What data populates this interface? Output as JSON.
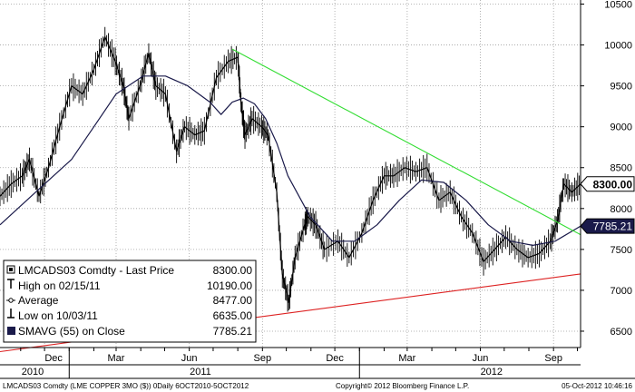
{
  "chart_data": {
    "type": "line",
    "instrument": "LMCADS03 Comdty",
    "y_ticks": [
      6500,
      7000,
      7500,
      8000,
      8500,
      9000,
      9500,
      10000,
      10500
    ],
    "ylim": [
      6300,
      10550
    ],
    "x_month_labels": [
      {
        "label": "Dec",
        "date": "2010-12-01"
      },
      {
        "label": "Mar",
        "date": "2011-03-01"
      },
      {
        "label": "Jun",
        "date": "2011-06-01"
      },
      {
        "label": "Sep",
        "date": "2011-09-01"
      },
      {
        "label": "Dec",
        "date": "2011-12-01"
      },
      {
        "label": "Mar",
        "date": "2012-03-01"
      },
      {
        "label": "Jun",
        "date": "2012-06-01"
      },
      {
        "label": "Sep",
        "date": "2012-09-01"
      }
    ],
    "x_year_labels": [
      {
        "label": "2010",
        "date": "2010-10-06"
      },
      {
        "label": "2011",
        "date": "2011-06-15"
      },
      {
        "label": "2012",
        "date": "2012-06-15"
      }
    ],
    "xlim": [
      "2010-10-06",
      "2012-10-05"
    ],
    "series": [
      {
        "name": "Last Price",
        "color": "#000000",
        "points": [
          [
            "2010-10-06",
            8150
          ],
          [
            "2010-10-20",
            8300
          ],
          [
            "2010-11-03",
            8400
          ],
          [
            "2010-11-12",
            8600
          ],
          [
            "2010-11-24",
            8150
          ],
          [
            "2010-12-06",
            8500
          ],
          [
            "2010-12-20",
            9000
          ],
          [
            "2011-01-04",
            9500
          ],
          [
            "2011-01-18",
            9400
          ],
          [
            "2011-02-01",
            9700
          ],
          [
            "2011-02-15",
            10100
          ],
          [
            "2011-02-28",
            9800
          ],
          [
            "2011-03-10",
            9500
          ],
          [
            "2011-03-17",
            9100
          ],
          [
            "2011-03-31",
            9500
          ],
          [
            "2011-04-11",
            9900
          ],
          [
            "2011-04-20",
            9500
          ],
          [
            "2011-05-02",
            9400
          ],
          [
            "2011-05-16",
            8700
          ],
          [
            "2011-05-26",
            9000
          ],
          [
            "2011-06-08",
            8900
          ],
          [
            "2011-06-20",
            8950
          ],
          [
            "2011-07-05",
            9600
          ],
          [
            "2011-07-20",
            9800
          ],
          [
            "2011-08-01",
            9850
          ],
          [
            "2011-08-05",
            9300
          ],
          [
            "2011-08-10",
            8900
          ],
          [
            "2011-08-19",
            9100
          ],
          [
            "2011-08-31",
            9000
          ],
          [
            "2011-09-08",
            8900
          ],
          [
            "2011-09-19",
            8200
          ],
          [
            "2011-09-26",
            7200
          ],
          [
            "2011-10-04",
            6850
          ],
          [
            "2011-10-12",
            7400
          ],
          [
            "2011-10-24",
            7800
          ],
          [
            "2011-10-28",
            7900
          ],
          [
            "2011-11-07",
            7800
          ],
          [
            "2011-11-18",
            7500
          ],
          [
            "2011-12-05",
            7600
          ],
          [
            "2011-12-19",
            7400
          ],
          [
            "2012-01-04",
            7700
          ],
          [
            "2012-01-18",
            8100
          ],
          [
            "2012-02-01",
            8400
          ],
          [
            "2012-02-13",
            8400
          ],
          [
            "2012-02-27",
            8500
          ],
          [
            "2012-03-12",
            8450
          ],
          [
            "2012-03-26",
            8500
          ],
          [
            "2012-04-10",
            8100
          ],
          [
            "2012-04-24",
            8200
          ],
          [
            "2012-05-08",
            7900
          ],
          [
            "2012-05-22",
            7700
          ],
          [
            "2012-06-05",
            7350
          ],
          [
            "2012-06-19",
            7500
          ],
          [
            "2012-07-03",
            7650
          ],
          [
            "2012-07-17",
            7500
          ],
          [
            "2012-07-31",
            7400
          ],
          [
            "2012-08-14",
            7450
          ],
          [
            "2012-08-28",
            7600
          ],
          [
            "2012-09-06",
            7850
          ],
          [
            "2012-09-14",
            8300
          ],
          [
            "2012-09-24",
            8200
          ],
          [
            "2012-10-05",
            8300
          ]
        ]
      },
      {
        "name": "SMAVG (55) on Close",
        "color": "#1a1a4a",
        "points": [
          [
            "2010-10-06",
            7800
          ],
          [
            "2010-11-03",
            8050
          ],
          [
            "2010-12-01",
            8300
          ],
          [
            "2011-01-04",
            8600
          ],
          [
            "2011-02-01",
            9000
          ],
          [
            "2011-03-01",
            9400
          ],
          [
            "2011-04-04",
            9620
          ],
          [
            "2011-05-02",
            9620
          ],
          [
            "2011-05-30",
            9500
          ],
          [
            "2011-06-27",
            9300
          ],
          [
            "2011-07-11",
            9150
          ],
          [
            "2011-07-25",
            9300
          ],
          [
            "2011-08-08",
            9350
          ],
          [
            "2011-08-22",
            9280
          ],
          [
            "2011-09-05",
            9100
          ],
          [
            "2011-09-19",
            8800
          ],
          [
            "2011-10-03",
            8400
          ],
          [
            "2011-10-31",
            7900
          ],
          [
            "2011-11-28",
            7600
          ],
          [
            "2011-12-26",
            7600
          ],
          [
            "2012-01-23",
            7800
          ],
          [
            "2012-02-20",
            8100
          ],
          [
            "2012-03-19",
            8350
          ],
          [
            "2012-04-16",
            8320
          ],
          [
            "2012-05-14",
            8100
          ],
          [
            "2012-06-11",
            7800
          ],
          [
            "2012-07-09",
            7600
          ],
          [
            "2012-08-06",
            7550
          ],
          [
            "2012-09-03",
            7600
          ],
          [
            "2012-10-05",
            7785.21
          ]
        ]
      },
      {
        "name": "Trendline (resistance)",
        "color": "#33dd33",
        "points": [
          [
            "2011-07-25",
            9950
          ],
          [
            "2012-10-05",
            7680
          ]
        ]
      },
      {
        "name": "Trendline (support)",
        "color": "#dd2222",
        "points": [
          [
            "2010-10-06",
            6250
          ],
          [
            "2012-10-05",
            7200
          ]
        ]
      }
    ],
    "price_tags": [
      {
        "value": 8300.0,
        "label": "8300.00",
        "style": "price"
      },
      {
        "value": 7785.21,
        "label": "7785.21",
        "style": "average"
      }
    ],
    "legend": {
      "placement": "bottom-left",
      "rows": [
        {
          "icon": "square-icon",
          "label": "LMCADS03 Comdty - Last Price",
          "value": "8300.00"
        },
        {
          "icon": "high-icon",
          "label": "High on 02/15/11",
          "value": "10190.00"
        },
        {
          "icon": "average-icon",
          "label": "Average",
          "value": "8477.00"
        },
        {
          "icon": "low-icon",
          "label": "Low on 10/03/11",
          "value": "6635.00"
        },
        {
          "icon": "smavg-icon",
          "label": "SMAVG (55) on Close",
          "value": "7785.21"
        }
      ]
    },
    "grid": true,
    "colors": {
      "grid": "#a0a0a0",
      "support": "#dd2222",
      "resistance": "#33dd33",
      "price": "#000000",
      "average": "#1a1a4a"
    }
  },
  "footer": {
    "left": "LMCADS03 Comdty (LME COPPER   3MO ($)) 0Daily 6OCT2010-5OCT2012",
    "center": "Copyright© 2012 Bloomberg Finance L.P.",
    "right": "05-Oct-2012 10:46:16"
  }
}
